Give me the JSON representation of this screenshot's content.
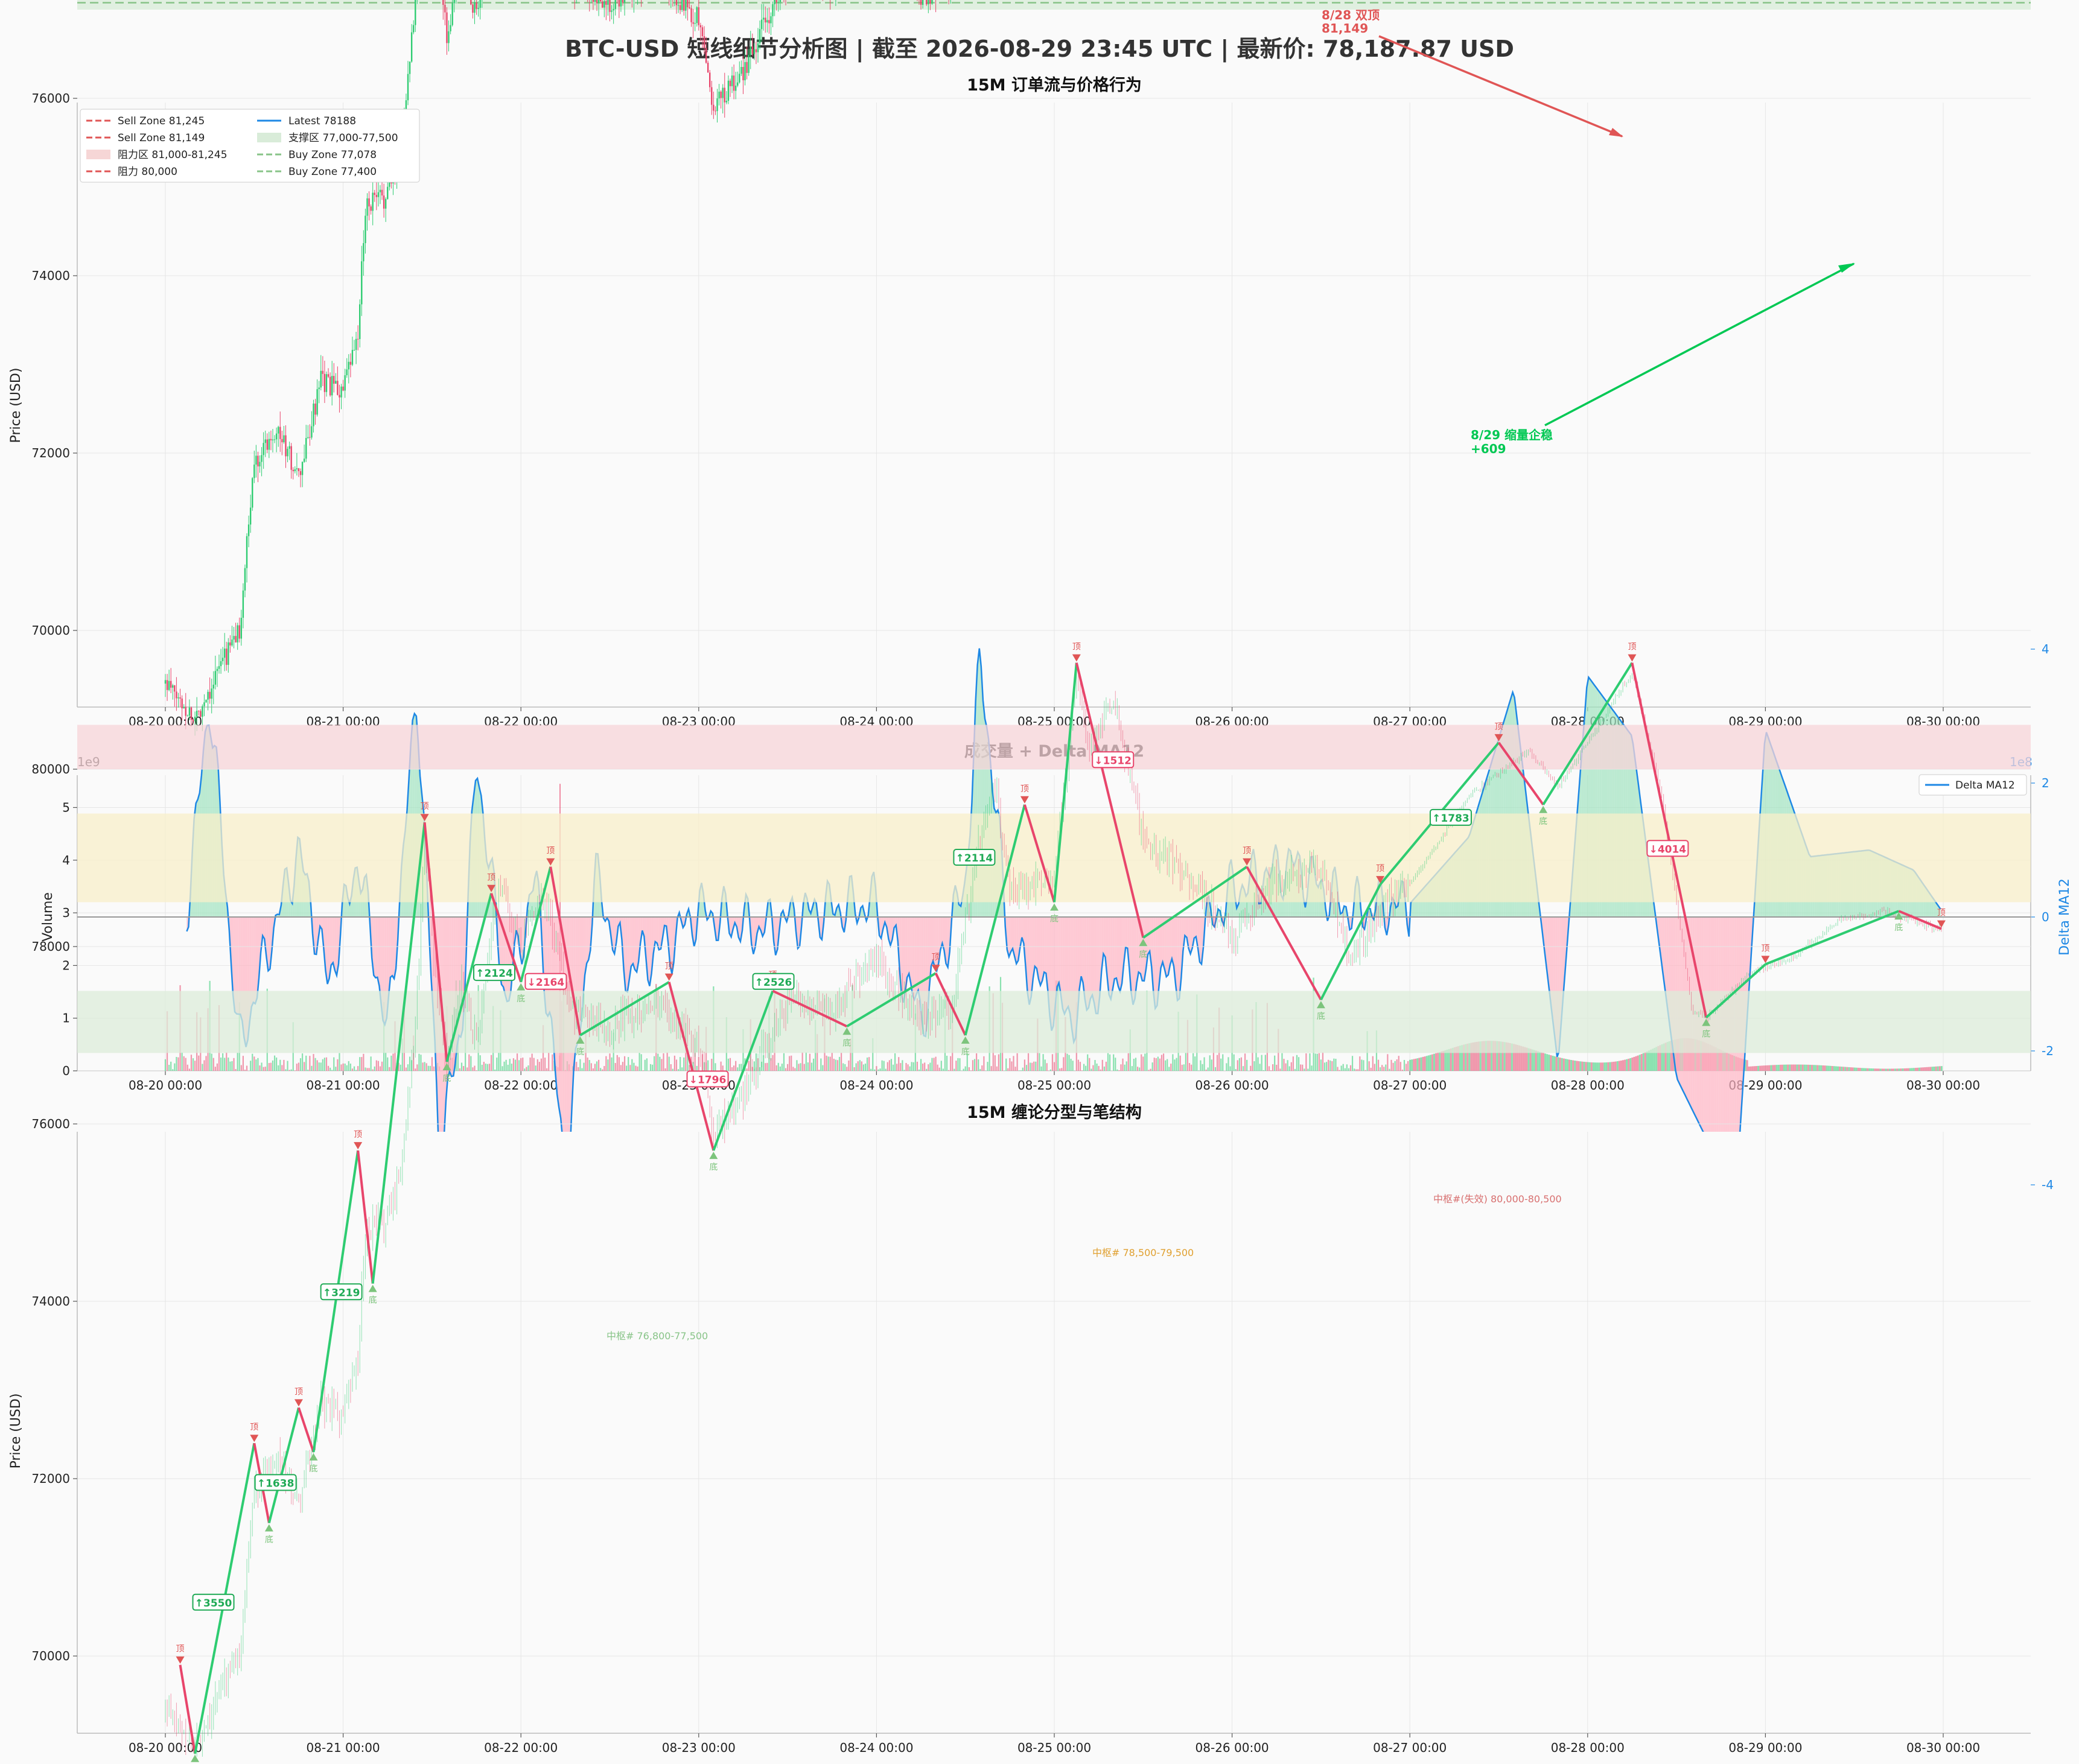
{
  "main_title": "BTC-USD 短线细节分析图 | 截至 2026-08-29 23:45 UTC | 最新价: 78,187.87 USD",
  "colors": {
    "bull": "#2ecc71",
    "bear": "#e8456b",
    "sell_line": "#e05555",
    "buy_line": "#88cc88",
    "latest": "#1e88e5",
    "resist_fill": "#f6d6d6",
    "support_fill": "#d9ecd9",
    "pivot_fill": "#f7ecc2",
    "delta_pos": "#9fe2bf",
    "delta_neg": "#ffb3c3"
  },
  "x_ticks": [
    "08-20 00:00",
    "08-21 00:00",
    "08-22 00:00",
    "08-23 00:00",
    "08-24 00:00",
    "08-25 00:00",
    "08-26 00:00",
    "08-27 00:00",
    "08-28 00:00",
    "08-29 00:00",
    "08-30 00:00"
  ],
  "panel1": {
    "title": "15M 订单流与价格行为",
    "ylabel": "Price (USD)",
    "yticks": [
      "70000",
      "72000",
      "74000",
      "76000",
      "78000",
      "80000"
    ],
    "legend": [
      {
        "label": "Sell Zone 81,245",
        "style": "dash-red"
      },
      {
        "label": "Latest 78188",
        "style": "solid-blue"
      },
      {
        "label": "Sell Zone 81,149",
        "style": "dash-red"
      },
      {
        "label": "支撑区 77,000-77,500",
        "style": "fill-green"
      },
      {
        "label": "阻力区 81,000-81,245",
        "style": "fill-red"
      },
      {
        "label": "Buy Zone 77,078",
        "style": "dash-green"
      },
      {
        "label": "阻力 80,000",
        "style": "dash-red-light"
      },
      {
        "label": "Buy Zone 77,400",
        "style": "dash-green-light"
      }
    ],
    "annotations": {
      "top_label": "8/28 双顶",
      "top_value": "81,149",
      "bottom_label": "8/29 缩量企稳",
      "bottom_value": "+609"
    }
  },
  "panel2": {
    "title": "成交量 + Delta MA12",
    "ylabel_left": "Volume",
    "ylabel_right": "Delta MA12",
    "left_exp": "1e9",
    "right_exp": "1e8",
    "yticks_left": [
      "0",
      "1",
      "2",
      "3",
      "4",
      "5"
    ],
    "yticks_right": [
      "-4",
      "-2",
      "0",
      "2",
      "4"
    ],
    "legend": "Delta MA12"
  },
  "panel3": {
    "title": "15M 缠论分型与笔结构",
    "ylabel": "Price (USD)",
    "yticks": [
      "70000",
      "72000",
      "74000",
      "76000",
      "78000",
      "80000"
    ],
    "zone_labels": [
      "中枢#(失效) 80,000-80,500",
      "中枢# 78,500-79,500",
      "中枢# 76,800-77,500"
    ],
    "bi_labels": [
      "↑3550",
      "↑1638",
      "↑3219",
      "↑2124",
      "↓2164",
      "↓1796",
      "↑2526",
      "↑2114",
      "↓1512",
      "↑1783",
      "↓4014"
    ],
    "top_mark": "顶",
    "bottom_mark": "底"
  },
  "chart_data": [
    {
      "type": "candlestick",
      "title": "15M 订单流与价格行为",
      "ylabel": "Price (USD)",
      "ylim": [
        68500,
        82000
      ],
      "x_range": [
        "08-19 12:00",
        "08-30 12:00"
      ],
      "price_path": [
        [
          "08-20 00:00",
          69400
        ],
        [
          "08-20 04:00",
          69000
        ],
        [
          "08-20 08:00",
          69700
        ],
        [
          "08-20 10:00",
          70000
        ],
        [
          "08-20 12:00",
          71900
        ],
        [
          "08-20 15:00",
          72300
        ],
        [
          "08-20 18:00",
          71700
        ],
        [
          "08-20 21:00",
          72800
        ],
        [
          "08-21 00:00",
          72700
        ],
        [
          "08-21 02:00",
          73300
        ],
        [
          "08-21 03:00",
          74800
        ],
        [
          "08-21 06:00",
          74900
        ],
        [
          "08-21 08:00",
          75600
        ],
        [
          "08-21 10:00",
          77400
        ],
        [
          "08-21 11:00",
          79300
        ],
        [
          "08-21 12:00",
          78000
        ],
        [
          "08-21 14:00",
          76700
        ],
        [
          "08-21 16:00",
          77600
        ],
        [
          "08-21 18:00",
          76900
        ],
        [
          "08-21 21:00",
          78700
        ],
        [
          "08-22 00:00",
          78000
        ],
        [
          "08-22 03:00",
          78600
        ],
        [
          "08-22 07:00",
          77300
        ],
        [
          "08-22 12:00",
          77100
        ],
        [
          "08-22 18:00",
          77400
        ],
        [
          "08-23 00:00",
          76900
        ],
        [
          "08-23 02:00",
          75900
        ],
        [
          "08-23 06:00",
          76300
        ],
        [
          "08-23 12:00",
          77400
        ],
        [
          "08-23 18:00",
          77300
        ],
        [
          "08-24 00:00",
          77900
        ],
        [
          "08-24 06:00",
          77100
        ],
        [
          "08-24 10:00",
          77300
        ],
        [
          "08-24 14:00",
          79200
        ],
        [
          "08-24 16:00",
          79800
        ],
        [
          "08-24 18:00",
          78600
        ],
        [
          "08-25 00:00",
          78800
        ],
        [
          "08-25 03:00",
          81000
        ],
        [
          "08-25 05:00",
          80200
        ],
        [
          "08-25 08:00",
          80800
        ],
        [
          "08-25 12:00",
          79200
        ],
        [
          "08-25 18:00",
          78800
        ],
        [
          "08-26 00:00",
          78100
        ],
        [
          "08-26 06:00",
          78800
        ],
        [
          "08-26 12:00",
          78900
        ],
        [
          "08-26 16:00",
          77900
        ],
        [
          "08-26 20:00",
          78400
        ],
        [
          "08-27 00:00",
          78700
        ],
        [
          "08-27 08:00",
          79700
        ],
        [
          "08-27 16:00",
          80200
        ],
        [
          "08-27 20:00",
          79800
        ],
        [
          "08-28 00:00",
          80300
        ],
        [
          "08-28 06:00",
          81100
        ],
        [
          "08-28 10:00",
          79700
        ],
        [
          "08-28 14:00",
          77300
        ],
        [
          "08-28 16:00",
          77200
        ],
        [
          "08-28 22:00",
          77700
        ],
        [
          "08-29 04:00",
          77900
        ],
        [
          "08-29 10:00",
          78300
        ],
        [
          "08-29 16:00",
          78400
        ],
        [
          "08-29 23:45",
          78188
        ]
      ],
      "levels": {
        "sell_zone_1": 81245,
        "sell_zone_2": 81149,
        "resistance": 80000,
        "latest": 78188,
        "buy_zone_1": 77400,
        "buy_zone_2": 77078,
        "support_zone": [
          77000,
          77500
        ],
        "resistance_zone": [
          81000,
          81245
        ]
      }
    },
    {
      "type": "bar",
      "title": "成交量 + Delta MA12",
      "ylabel": "Volume",
      "ylim_volume": [
        0,
        5500000000.0
      ],
      "ylim_delta": [
        -450000000.0,
        450000000.0
      ],
      "delta_ma12_path": [
        [
          "08-20 00:00",
          0
        ],
        [
          "08-20 03:00",
          20000000.0
        ],
        [
          "08-20 06:00",
          330000000.0
        ],
        [
          "08-20 10:00",
          -200000000.0
        ],
        [
          "08-20 14:00",
          -40000000.0
        ],
        [
          "08-20 18:00",
          100000000.0
        ],
        [
          "08-20 22:00",
          -100000000.0
        ],
        [
          "08-21 02:00",
          90000000.0
        ],
        [
          "08-21 06:00",
          -180000000.0
        ],
        [
          "08-21 10:00",
          340000000.0
        ],
        [
          "08-21 13:00",
          -350000000.0
        ],
        [
          "08-21 16:00",
          -160000000.0
        ],
        [
          "08-21 18:00",
          240000000.0
        ],
        [
          "08-21 22:00",
          -130000000.0
        ],
        [
          "08-22 02:00",
          60000000.0
        ],
        [
          "08-22 06:00",
          -390000000.0
        ],
        [
          "08-22 10:00",
          60000000.0
        ],
        [
          "08-22 14:00",
          -80000000.0
        ],
        [
          "08-22 20:00",
          -40000000.0
        ],
        [
          "08-23 00:00",
          10000000.0
        ],
        [
          "08-23 08:00",
          -20000000.0
        ],
        [
          "08-23 16:00",
          10000000.0
        ],
        [
          "08-24 00:00",
          20000000.0
        ],
        [
          "08-24 06:00",
          -150000000.0
        ],
        [
          "08-24 12:00",
          50000000.0
        ],
        [
          "08-24 14:00",
          390000000.0
        ],
        [
          "08-24 18:00",
          -50000000.0
        ],
        [
          "08-25 02:00",
          -150000000.0
        ],
        [
          "08-25 08:00",
          -90000000.0
        ],
        [
          "08-25 16:00",
          -90000000.0
        ],
        [
          "08-26 00:00",
          40000000.0
        ],
        [
          "08-26 08:00",
          80000000.0
        ],
        [
          "08-26 16:00",
          10000000.0
        ],
        [
          "08-27 00:00",
          20000000.0
        ],
        [
          "08-27 08:00",
          120000000.0
        ],
        [
          "08-27 14:00",
          340000000.0
        ],
        [
          "08-27 20:00",
          -220000000.0
        ],
        [
          "08-28 00:00",
          360000000.0
        ],
        [
          "08-28 06:00",
          270000000.0
        ],
        [
          "08-28 12:00",
          -240000000.0
        ],
        [
          "08-28 20:00",
          -420000000.0
        ],
        [
          "08-29 00:00",
          280000000.0
        ],
        [
          "08-29 06:00",
          90000000.0
        ],
        [
          "08-29 14:00",
          100000000.0
        ],
        [
          "08-29 20:00",
          70000000.0
        ],
        [
          "08-29 23:45",
          10000000.0
        ]
      ]
    },
    {
      "type": "line",
      "title": "15M 缠论分型与笔结构",
      "ylabel": "Price (USD)",
      "ylim": [
        68300,
        82000
      ],
      "bi_points": [
        [
          "08-20 02:00",
          69900,
          "顶"
        ],
        [
          "08-20 04:00",
          68900,
          "底"
        ],
        [
          "08-20 12:00",
          72400,
          "顶"
        ],
        [
          "08-20 14:00",
          71500,
          "底"
        ],
        [
          "08-20 18:00",
          72800,
          "顶"
        ],
        [
          "08-20 20:00",
          72300,
          "底"
        ],
        [
          "08-21 02:00",
          75700,
          "顶"
        ],
        [
          "08-21 04:00",
          74200,
          "底"
        ],
        [
          "08-21 11:00",
          79400,
          "顶"
        ],
        [
          "08-21 14:00",
          76700,
          "底"
        ],
        [
          "08-21 20:00",
          78600,
          "顶"
        ],
        [
          "08-22 00:00",
          77600,
          "底"
        ],
        [
          "08-22 04:00",
          78900,
          "顶"
        ],
        [
          "08-22 08:00",
          77000,
          "底"
        ],
        [
          "08-22 20:00",
          77600,
          "顶"
        ],
        [
          "08-23 02:00",
          75700,
          "底"
        ],
        [
          "08-23 10:00",
          77500,
          "顶"
        ],
        [
          "08-23 20:00",
          77100,
          "底"
        ],
        [
          "08-24 08:00",
          77700,
          "顶"
        ],
        [
          "08-24 12:00",
          77000,
          "底"
        ],
        [
          "08-24 20:00",
          79600,
          "顶"
        ],
        [
          "08-25 00:00",
          78500,
          "底"
        ],
        [
          "08-25 03:00",
          81200,
          "顶"
        ],
        [
          "08-25 12:00",
          78100,
          "底"
        ],
        [
          "08-26 02:00",
          78900,
          "顶"
        ],
        [
          "08-26 12:00",
          77400,
          "底"
        ],
        [
          "08-26 20:00",
          78700,
          "顶"
        ],
        [
          "08-27 12:00",
          80300,
          "顶"
        ],
        [
          "08-27 18:00",
          79600,
          "底"
        ],
        [
          "08-28 06:00",
          81200,
          "顶"
        ],
        [
          "08-28 16:00",
          77200,
          "底"
        ],
        [
          "08-29 00:00",
          77800,
          "顶"
        ],
        [
          "08-29 18:00",
          78400,
          "底"
        ],
        [
          "08-29 23:45",
          78200,
          "顶"
        ]
      ],
      "zones": [
        {
          "label": "中枢#(失效) 80,000-80,500",
          "range": [
            80000,
            80500
          ]
        },
        {
          "label": "中枢# 78,500-79,500",
          "range": [
            78500,
            79500
          ]
        },
        {
          "label": "中枢# 76,800-77,500",
          "range": [
            76800,
            77500
          ]
        }
      ]
    }
  ]
}
